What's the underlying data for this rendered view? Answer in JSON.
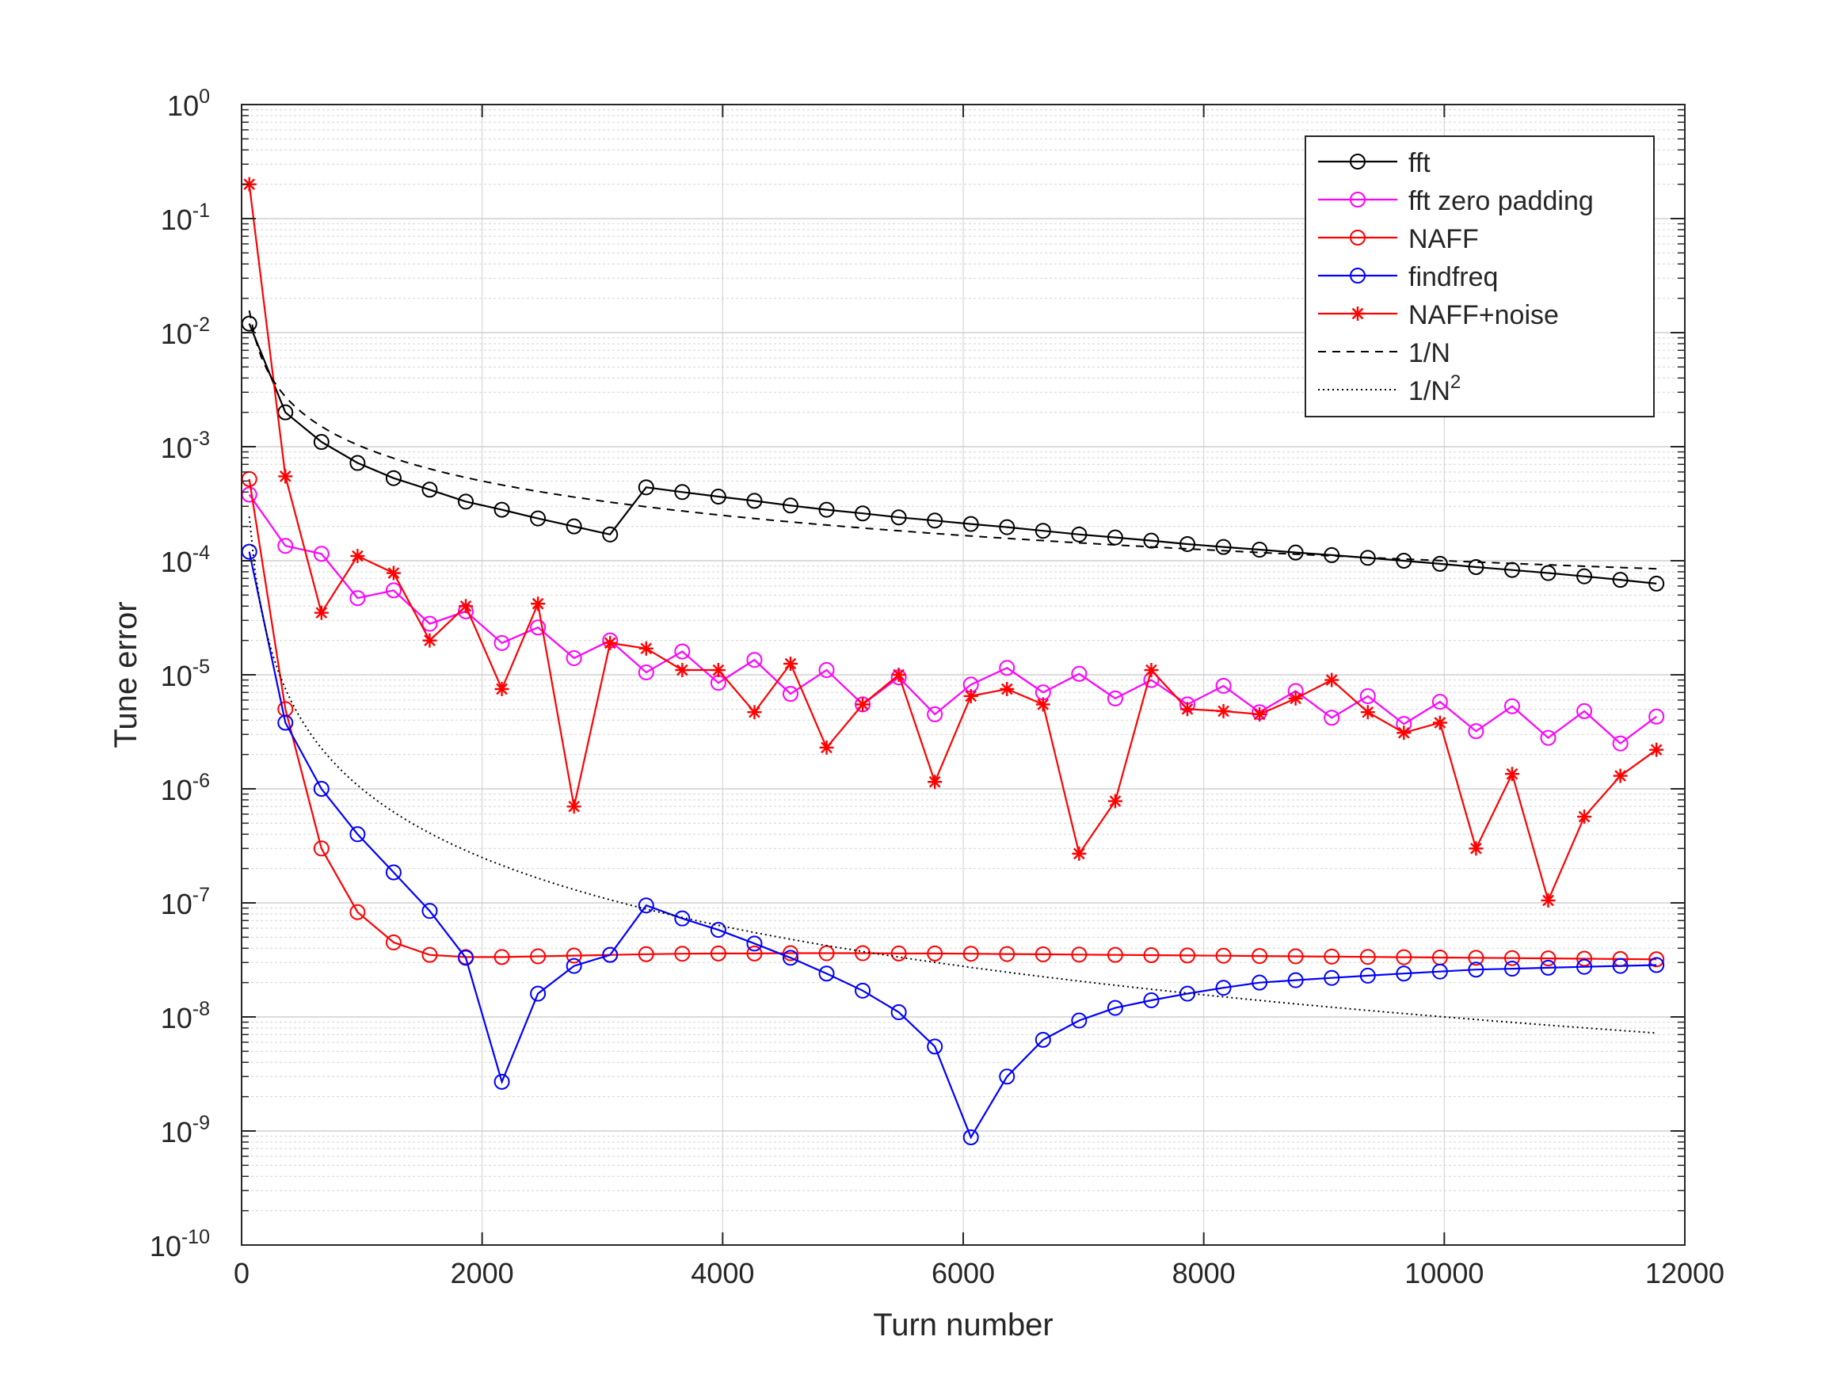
{
  "chart_data": {
    "type": "line",
    "title": "",
    "xlabel": "Turn number",
    "ylabel": "Tune error",
    "xlim": [
      0,
      12000
    ],
    "ylim": [
      1e-10,
      1
    ],
    "yscale": "log",
    "grid": true,
    "minor_grid_y": true,
    "legend_position": "top-right",
    "x_ticks": [
      "0",
      "2000",
      "4000",
      "6000",
      "8000",
      "10000",
      "12000"
    ],
    "y_ticks": [
      {
        "base": "10",
        "exp": "-10"
      },
      {
        "base": "10",
        "exp": "-9"
      },
      {
        "base": "10",
        "exp": "-8"
      },
      {
        "base": "10",
        "exp": "-7"
      },
      {
        "base": "10",
        "exp": "-6"
      },
      {
        "base": "10",
        "exp": "-5"
      },
      {
        "base": "10",
        "exp": "-4"
      },
      {
        "base": "10",
        "exp": "-3"
      },
      {
        "base": "10",
        "exp": "-2"
      },
      {
        "base": "10",
        "exp": "-1"
      },
      {
        "base": "10",
        "exp": "0"
      }
    ],
    "x": [
      64,
      364,
      664,
      964,
      1264,
      1564,
      1864,
      2164,
      2464,
      2764,
      3064,
      3364,
      3664,
      3964,
      4264,
      4564,
      4864,
      5164,
      5464,
      5764,
      6064,
      6364,
      6664,
      6964,
      7264,
      7564,
      7864,
      8164,
      8464,
      8764,
      9064,
      9364,
      9664,
      9964,
      10264,
      10564,
      10864,
      11164,
      11464,
      11764
    ],
    "series": [
      {
        "name": "fft",
        "color": "#000000",
        "line": "solid",
        "marker": "circle",
        "values": [
          0.012,
          0.002,
          0.0011,
          0.00072,
          0.00053,
          0.00042,
          0.00033,
          0.00028,
          0.000235,
          0.0002,
          0.00017,
          0.00044,
          0.0004,
          0.000365,
          0.000335,
          0.000305,
          0.00028,
          0.00026,
          0.00024,
          0.000225,
          0.00021,
          0.000197,
          0.000183,
          0.00017,
          0.00016,
          0.00015,
          0.00014,
          0.000132,
          0.000125,
          0.000118,
          0.000112,
          0.000106,
          0.0001,
          9.4e-05,
          8.8e-05,
          8.3e-05,
          7.8e-05,
          7.3e-05,
          6.8e-05,
          6.3e-05
        ]
      },
      {
        "name": "fft zero padding",
        "color": "#ff00ff",
        "line": "solid",
        "marker": "circle",
        "values": [
          0.00038,
          0.000135,
          0.000115,
          4.7e-05,
          5.5e-05,
          2.8e-05,
          3.6e-05,
          1.9e-05,
          2.6e-05,
          1.4e-05,
          2e-05,
          1.05e-05,
          1.6e-05,
          8.5e-06,
          1.35e-05,
          6.8e-06,
          1.1e-05,
          5.5e-06,
          9.5e-06,
          4.5e-06,
          8.2e-06,
          1.15e-05,
          7e-06,
          1.02e-05,
          6.2e-06,
          9e-06,
          5.5e-06,
          8e-06,
          4.7e-06,
          7.2e-06,
          4.2e-06,
          6.5e-06,
          3.7e-06,
          5.8e-06,
          3.2e-06,
          5.3e-06,
          2.8e-06,
          4.8e-06,
          2.5e-06,
          4.3e-06
        ]
      },
      {
        "name": "NAFF",
        "color": "#ff0000",
        "line": "solid",
        "marker": "circle",
        "values": [
          0.00052,
          5e-06,
          3e-07,
          8.3e-08,
          4.5e-08,
          3.5e-08,
          3.35e-08,
          3.35e-08,
          3.4e-08,
          3.45e-08,
          3.5e-08,
          3.55e-08,
          3.58e-08,
          3.6e-08,
          3.6e-08,
          3.62e-08,
          3.62e-08,
          3.62e-08,
          3.6e-08,
          3.6e-08,
          3.58e-08,
          3.56e-08,
          3.54e-08,
          3.52e-08,
          3.5e-08,
          3.48e-08,
          3.46e-08,
          3.44e-08,
          3.42e-08,
          3.4e-08,
          3.38e-08,
          3.36e-08,
          3.34e-08,
          3.32e-08,
          3.3e-08,
          3.28e-08,
          3.26e-08,
          3.24e-08,
          3.22e-08,
          3.2e-08
        ]
      },
      {
        "name": "findfreq",
        "color": "#0000ff",
        "line": "solid",
        "marker": "circle",
        "values": [
          0.00012,
          3.8e-06,
          1e-06,
          4e-07,
          1.85e-07,
          8.5e-08,
          3.3e-08,
          2.7e-09,
          1.6e-08,
          2.8e-08,
          3.5e-08,
          9.5e-08,
          7.3e-08,
          5.8e-08,
          4.4e-08,
          3.3e-08,
          2.4e-08,
          1.7e-08,
          1.1e-08,
          5.5e-09,
          8.8e-10,
          3e-09,
          6.3e-09,
          9.3e-09,
          1.2e-08,
          1.4e-08,
          1.6e-08,
          1.8e-08,
          2e-08,
          2.1e-08,
          2.2e-08,
          2.3e-08,
          2.4e-08,
          2.5e-08,
          2.6e-08,
          2.65e-08,
          2.7e-08,
          2.75e-08,
          2.8e-08,
          2.85e-08
        ]
      },
      {
        "name": "NAFF+noise",
        "color": "#ff0000",
        "line": "solid",
        "marker": "star",
        "values": [
          0.2,
          0.00055,
          3.5e-05,
          0.00011,
          7.8e-05,
          2e-05,
          4e-05,
          7.5e-06,
          4.2e-05,
          7e-07,
          1.9e-05,
          1.7e-05,
          1.1e-05,
          1.1e-05,
          4.7e-06,
          1.25e-05,
          2.3e-06,
          5.5e-06,
          1e-05,
          1.15e-06,
          6.5e-06,
          7.5e-06,
          5.5e-06,
          2.7e-07,
          7.8e-07,
          1.1e-05,
          5e-06,
          4.8e-06,
          4.5e-06,
          6.2e-06,
          9e-06,
          4.7e-06,
          3.1e-06,
          3.8e-06,
          3e-07,
          1.35e-06,
          1.05e-07,
          5.7e-07,
          1.3e-06,
          2.2e-06
        ]
      },
      {
        "name": "1/N",
        "color": "#000000",
        "line": "dashed",
        "marker": "none",
        "formula": "1/N",
        "n_start": 64,
        "n_end": 11764
      },
      {
        "name": "1/N",
        "name_exp": "2",
        "color": "#000000",
        "line": "dotted",
        "marker": "none",
        "formula": "1/N^2",
        "n_start": 64,
        "n_end": 11764
      }
    ]
  }
}
